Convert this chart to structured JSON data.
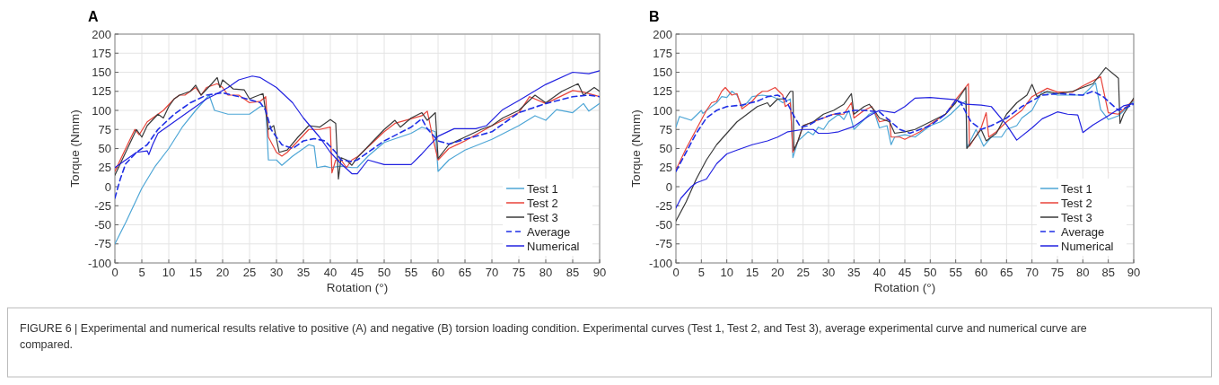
{
  "chart_data": [
    {
      "type": "line",
      "title": "A",
      "xlabel": "Rotation (°)",
      "ylabel": "Torque (Nmm)",
      "xlim": [
        0,
        90
      ],
      "ylim": [
        -100,
        200
      ],
      "xticks": [
        0,
        5,
        10,
        15,
        20,
        25,
        30,
        35,
        40,
        45,
        50,
        55,
        60,
        65,
        70,
        75,
        80,
        85,
        90
      ],
      "yticks": [
        -100,
        -75,
        -50,
        -25,
        0,
        25,
        50,
        75,
        100,
        125,
        150,
        175,
        200
      ],
      "grid": true,
      "legend": "bottom right",
      "line_style": "solid",
      "annotations": [
        "FIGURE 6 | Experimental and numerical results relative to positive (A) and negative (B) torsion loading condition. Experimental curves (Test 1, Test 2, and Test 3), average experimental curve and numerical curve are compared."
      ],
      "series": [
        {
          "name": "Test 1",
          "color": "#4ea6d6",
          "x": [
            0,
            2,
            5,
            7.5,
            10,
            12.5,
            15,
            17.5,
            18.5,
            21,
            25,
            26,
            27,
            28,
            28.5,
            30,
            31,
            33,
            35,
            36,
            37,
            37.5,
            39,
            40,
            42,
            44,
            45,
            47,
            50,
            55,
            57,
            59.5,
            60,
            62,
            65,
            70,
            75,
            78,
            80,
            82,
            85,
            87,
            88,
            90
          ],
          "values": [
            -75,
            -47,
            -2,
            27,
            50,
            78,
            100,
            120,
            100,
            95,
            95,
            100,
            105,
            105,
            35,
            35,
            28,
            40,
            50,
            55,
            53,
            25,
            27,
            25,
            27,
            25,
            25,
            40,
            58,
            70,
            78,
            72,
            20,
            35,
            48,
            62,
            80,
            93,
            87,
            101,
            97,
            109,
            99,
            109
          ]
        },
        {
          "name": "Test 2",
          "color": "#e8433a",
          "x": [
            0,
            2,
            3.7,
            4.5,
            6,
            8,
            9,
            11,
            12,
            13,
            15,
            16,
            17,
            19,
            20,
            21,
            23,
            25,
            27,
            28,
            28.5,
            30,
            31,
            32,
            34,
            36,
            38,
            40,
            40.3,
            41,
            42,
            43,
            44,
            45,
            47,
            50,
            52,
            55,
            57,
            58,
            59,
            60,
            62,
            65,
            70,
            75,
            77,
            80,
            85,
            87,
            90
          ],
          "values": [
            20,
            50,
            75,
            68,
            85,
            95,
            100,
            115,
            120,
            120,
            130,
            120,
            130,
            135,
            130,
            120,
            120,
            110,
            112,
            118,
            65,
            45,
            40,
            45,
            60,
            75,
            75,
            78,
            18,
            35,
            35,
            25,
            35,
            39,
            52,
            72,
            83,
            89,
            93,
            99,
            65,
            35,
            50,
            60,
            80,
            97,
            118,
            109,
            126,
            124,
            118
          ]
        },
        {
          "name": "Test 3",
          "color": "#3a3a3a",
          "x": [
            0,
            2,
            4,
            5,
            6,
            8,
            9,
            10,
            11,
            12,
            14,
            15,
            16,
            18,
            19,
            19.5,
            20,
            22,
            24,
            25,
            26,
            27.5,
            28.5,
            29.5,
            30.5,
            32,
            34,
            36,
            38,
            40,
            41,
            41.5,
            42,
            43,
            44,
            45,
            50,
            52,
            53,
            55,
            57,
            58,
            59.5,
            60,
            62,
            65,
            68,
            70,
            72,
            75,
            78,
            80,
            83,
            86,
            87,
            89,
            90
          ],
          "values": [
            15,
            45,
            75,
            65,
            80,
            95,
            90,
            105,
            115,
            120,
            125,
            133,
            120,
            135,
            143,
            130,
            140,
            128,
            127,
            115,
            118,
            122,
            75,
            80,
            45,
            48,
            65,
            80,
            78,
            88,
            83,
            10,
            38,
            35,
            28,
            38,
            75,
            87,
            78,
            90,
            97,
            87,
            97,
            37,
            55,
            65,
            75,
            80,
            90,
            100,
            120,
            110,
            125,
            135,
            120,
            130,
            125
          ]
        },
        {
          "name": "Average",
          "color": "#1f2fe6",
          "line_style": "dashed",
          "x": [
            0,
            1,
            2,
            4,
            6,
            8,
            11,
            14,
            17,
            20,
            23,
            26,
            27,
            28,
            29,
            31,
            33,
            35,
            37,
            39,
            41,
            42,
            44,
            45,
            48,
            50,
            55,
            57,
            58,
            60,
            62,
            65,
            70,
            75,
            80,
            85,
            88,
            90
          ],
          "values": [
            -15,
            10,
            30,
            45,
            55,
            75,
            95,
            110,
            120,
            123,
            118,
            112,
            110,
            100,
            75,
            55,
            50,
            60,
            63,
            60,
            45,
            35,
            33,
            35,
            50,
            60,
            78,
            89,
            76,
            60,
            56,
            62,
            72,
            97,
            109,
            118,
            120,
            118
          ]
        },
        {
          "name": "Numerical",
          "color": "#2222e0",
          "x": [
            0,
            2,
            4,
            6,
            6.3,
            7,
            8,
            10,
            12,
            15,
            17,
            19,
            21,
            23,
            25.5,
            27,
            30,
            33,
            35,
            38,
            40,
            42,
            44,
            45,
            47,
            50,
            55,
            57,
            60,
            63,
            67,
            69,
            72,
            75,
            80,
            85,
            88,
            90
          ],
          "values": [
            25,
            35,
            45,
            47,
            42,
            55,
            70,
            80,
            90,
            105,
            115,
            122,
            130,
            140,
            145,
            143,
            130,
            110,
            90,
            65,
            45,
            30,
            17,
            17,
            35,
            29,
            29,
            43,
            66,
            76,
            76,
            80,
            101,
            113,
            134,
            150,
            148,
            152
          ]
        }
      ]
    },
    {
      "type": "line",
      "title": "B",
      "xlabel": "Rotation (°)",
      "ylabel": "Torque (Nmm)",
      "xlim": [
        0,
        90
      ],
      "ylim": [
        -100,
        200
      ],
      "xticks": [
        0,
        5,
        10,
        15,
        20,
        25,
        30,
        35,
        40,
        45,
        50,
        55,
        60,
        65,
        70,
        75,
        80,
        85,
        90
      ],
      "yticks": [
        -100,
        -75,
        -50,
        -25,
        0,
        25,
        50,
        75,
        100,
        125,
        150,
        175,
        200
      ],
      "grid": true,
      "legend": "bottom right",
      "line_style": "solid",
      "series": [
        {
          "name": "Test 1",
          "color": "#4ea6d6",
          "x": [
            0,
            0.7,
            3,
            5,
            5.3,
            7,
            8,
            9,
            10,
            11,
            12,
            13,
            14,
            15,
            17,
            19,
            20,
            21,
            22.5,
            23,
            24,
            26,
            27,
            28,
            29,
            30,
            32,
            33,
            34,
            35,
            37,
            38,
            39,
            40,
            41.5,
            42.3,
            43,
            45,
            47,
            50,
            52,
            54,
            56,
            57,
            57.2,
            59,
            60.5,
            62,
            64,
            65,
            67,
            68,
            70,
            72,
            75,
            80,
            82.5,
            83.5,
            85,
            87,
            90
          ],
          "values": [
            78,
            92,
            87,
            100,
            96,
            105,
            110,
            118,
            117,
            125,
            120,
            105,
            110,
            118,
            120,
            118,
            115,
            110,
            115,
            38,
            60,
            72,
            68,
            78,
            75,
            85,
            95,
            88,
            100,
            75,
            88,
            95,
            98,
            77,
            80,
            55,
            65,
            68,
            65,
            80,
            85,
            95,
            108,
            112,
            51,
            75,
            53,
            65,
            65,
            75,
            80,
            90,
            100,
            125,
            120,
            120,
            136,
            101,
            88,
            93,
            112
          ]
        },
        {
          "name": "Test 2",
          "color": "#e8433a",
          "x": [
            0,
            2,
            4,
            6,
            7,
            8,
            9,
            9.7,
            11,
            12,
            13,
            15,
            16,
            17,
            18,
            19.5,
            21,
            21.5,
            22.5,
            23,
            24,
            25,
            27,
            29,
            31,
            33,
            34.5,
            35,
            37,
            38.5,
            40,
            42,
            42.3,
            44,
            45,
            48,
            50,
            53,
            55,
            57.5,
            57.7,
            60,
            61,
            61.5,
            63,
            65,
            68,
            70,
            73,
            75,
            78,
            80,
            83.5,
            85,
            87,
            90
          ],
          "values": [
            22,
            50,
            75,
            100,
            110,
            112,
            125,
            130,
            120,
            122,
            102,
            112,
            120,
            125,
            125,
            130,
            120,
            105,
            110,
            45,
            60,
            80,
            85,
            90,
            95,
            95,
            110,
            90,
            100,
            105,
            85,
            88,
            65,
            65,
            62,
            72,
            82,
            95,
            114,
            135,
            53,
            77,
            97,
            65,
            72,
            85,
            100,
            118,
            129,
            124,
            124,
            132,
            144,
            97,
            95,
            114
          ]
        },
        {
          "name": "Test 3",
          "color": "#3a3a3a",
          "x": [
            0,
            2,
            4,
            6,
            8,
            10,
            12,
            14,
            16,
            18,
            18.5,
            20,
            21.5,
            22.5,
            23,
            23.2,
            24,
            25,
            27,
            29,
            31,
            33,
            34.5,
            35,
            37,
            38,
            39,
            40,
            42,
            43,
            45,
            47,
            50,
            53,
            55,
            57,
            57.2,
            60,
            61,
            63,
            65,
            67,
            69,
            70,
            71,
            73,
            75,
            78,
            80,
            82,
            84.5,
            86.5,
            87,
            87.3,
            88,
            90
          ],
          "values": [
            -45,
            -20,
            10,
            35,
            55,
            70,
            85,
            95,
            105,
            110,
            105,
            115,
            115,
            125,
            125,
            48,
            60,
            80,
            85,
            95,
            100,
            108,
            122,
            95,
            105,
            108,
            100,
            90,
            85,
            70,
            72,
            75,
            85,
            95,
            110,
            130,
            50,
            75,
            60,
            70,
            95,
            110,
            120,
            134,
            118,
            125,
            122,
            125,
            130,
            135,
            156,
            145,
            142,
            83,
            95,
            116
          ]
        },
        {
          "name": "Average",
          "color": "#1f2fe6",
          "line_style": "dashed",
          "x": [
            0,
            2,
            4,
            6,
            8,
            10,
            13,
            16,
            18,
            20,
            21.5,
            23,
            24.5,
            26,
            28,
            31,
            33,
            35,
            37,
            40,
            44,
            46,
            50,
            53,
            55,
            56,
            58,
            60,
            62,
            65,
            68,
            72,
            75,
            80,
            82,
            84,
            87,
            89,
            90
          ],
          "values": [
            20,
            45,
            70,
            90,
            100,
            105,
            107,
            112,
            118,
            120,
            115,
            95,
            78,
            80,
            88,
            95,
            97,
            100,
            100,
            98,
            75,
            70,
            80,
            95,
            113,
            110,
            85,
            75,
            80,
            90,
            105,
            120,
            122,
            120,
            125,
            118,
            100,
            105,
            108
          ]
        },
        {
          "name": "Numerical",
          "color": "#2222e0",
          "x": [
            0,
            1,
            3,
            4,
            6,
            7,
            8,
            10,
            12,
            15,
            18,
            20,
            22,
            25,
            27,
            28,
            30,
            32,
            35,
            38,
            40,
            43,
            45,
            47,
            50,
            55,
            57,
            60,
            62,
            64,
            65,
            67,
            70,
            72,
            75,
            77,
            79,
            80,
            82,
            85,
            88,
            90
          ],
          "values": [
            -28,
            -15,
            0,
            5,
            10,
            20,
            30,
            43,
            48,
            55,
            60,
            65,
            72,
            75,
            75,
            70,
            70,
            72,
            79,
            93,
            100,
            97,
            105,
            116,
            117,
            114,
            108,
            107,
            105,
            89,
            81,
            61,
            77,
            89,
            98,
            95,
            94,
            71,
            81,
            93,
            106,
            109
          ]
        }
      ]
    }
  ]
}
